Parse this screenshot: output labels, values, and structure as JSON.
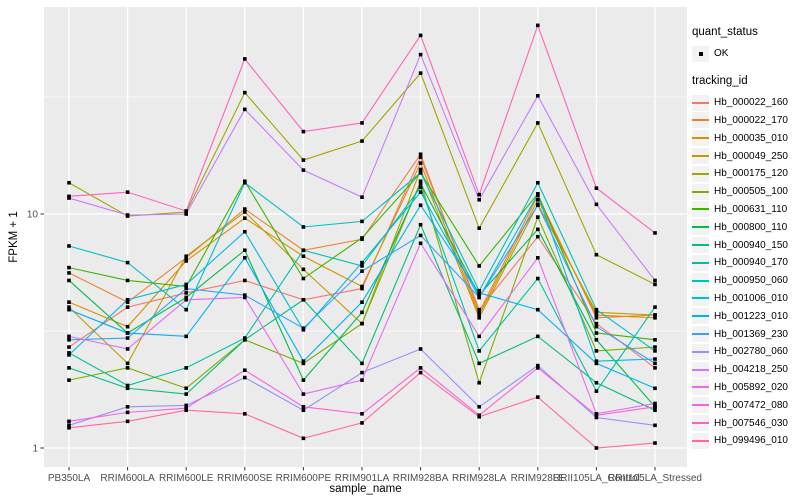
{
  "style": {
    "background": "#FFFFFF",
    "panel_bg": "#EBEBEB",
    "grid_color": "#FFFFFF",
    "tick_text_color": "#4D4D4D",
    "axis_title_color": "#000000",
    "point_color": "#000000",
    "legend_key_bg": "#F2F2F2"
  },
  "legend": {
    "quant_status_title": "quant_status",
    "quant_status_items": [
      "OK"
    ],
    "tracking_id_title": "tracking_id"
  },
  "chart_data": {
    "type": "line",
    "title": "",
    "xlabel": "sample_name",
    "ylabel": "FPKM + 1",
    "legend_position": "right",
    "grid": true,
    "point_marker": {
      "shape": "square",
      "color": "#000000",
      "meaning": "quant_status = OK"
    },
    "y_axis": {
      "scale": "log10",
      "ticks": [
        1,
        10
      ],
      "tick_labels": [
        "1",
        "10"
      ],
      "minor_ticks": [
        3.162,
        31.623
      ],
      "range": [
        0.84,
        77
      ]
    },
    "categories": [
      "PB350LA",
      "RRIM600LA",
      "RRIM600LE",
      "RRIM600SE",
      "RRIM600PE",
      "RRIM901LA",
      "RRIM928BA",
      "RRIM928LA",
      "RRIM928LE",
      "RRII105LA_Control",
      "RRII105LA_Stressed"
    ],
    "series": [
      {
        "name": "Hb_000022_160",
        "color": "#F8766D",
        "values": [
          2.7,
          4.0,
          4.6,
          5.2,
          4.3,
          4.8,
          17.5,
          3.9,
          8.0,
          3.4,
          2.2
        ]
      },
      {
        "name": "Hb_000022_170",
        "color": "#EA8331",
        "values": [
          5.6,
          4.2,
          6.5,
          10.5,
          7.0,
          7.8,
          18.0,
          3.8,
          12.0,
          3.6,
          3.7
        ]
      },
      {
        "name": "Hb_000035_010",
        "color": "#D89000",
        "values": [
          4.2,
          3.3,
          6.3,
          9.6,
          6.6,
          4.9,
          16.5,
          3.7,
          11.5,
          3.7,
          3.6
        ]
      },
      {
        "name": "Hb_000049_250",
        "color": "#C09B00",
        "values": [
          4.0,
          2.3,
          6.6,
          10.2,
          5.8,
          3.4,
          15.5,
          3.6,
          11.0,
          3.8,
          3.7
        ]
      },
      {
        "name": "Hb_000175_120",
        "color": "#A3A500",
        "values": [
          13.6,
          9.8,
          10.2,
          33.0,
          17.0,
          20.5,
          40.0,
          8.7,
          24.5,
          6.7,
          5.0
        ]
      },
      {
        "name": "Hb_000505_100",
        "color": "#7CAE00",
        "values": [
          1.95,
          2.2,
          1.8,
          2.9,
          2.3,
          3.4,
          13.8,
          1.9,
          9.7,
          2.6,
          2.7
        ]
      },
      {
        "name": "Hb_000631_110",
        "color": "#39B600",
        "values": [
          5.9,
          5.2,
          4.9,
          13.8,
          5.3,
          7.9,
          15.0,
          6.0,
          12.2,
          3.1,
          2.9
        ]
      },
      {
        "name": "Hb_000800_110",
        "color": "#00BB4E",
        "values": [
          5.2,
          3.1,
          4.4,
          7.0,
          1.95,
          3.8,
          13.5,
          4.5,
          8.6,
          2.9,
          1.5
        ]
      },
      {
        "name": "Hb_000940_150",
        "color": "#00BF7D",
        "values": [
          2.2,
          1.8,
          1.7,
          2.9,
          4.3,
          2.3,
          9.0,
          2.3,
          3.0,
          1.9,
          1.45
        ]
      },
      {
        "name": "Hb_000940_170",
        "color": "#00C1A3",
        "values": [
          2.55,
          1.85,
          2.2,
          2.95,
          7.0,
          6.0,
          13.0,
          2.6,
          5.3,
          1.75,
          4.0
        ]
      },
      {
        "name": "Hb_000950_060",
        "color": "#00BFC4",
        "values": [
          7.3,
          6.2,
          3.9,
          13.6,
          8.8,
          9.3,
          15.0,
          4.7,
          13.6,
          3.9,
          2.6
        ]
      },
      {
        "name": "Hb_001006_010",
        "color": "#00BAE0",
        "values": [
          2.5,
          4.3,
          5.0,
          8.4,
          3.2,
          6.2,
          12.4,
          4.4,
          12.1,
          2.35,
          2.4
        ]
      },
      {
        "name": "Hb_001223_010",
        "color": "#00B0F6",
        "values": [
          3.9,
          3.1,
          3.0,
          6.5,
          2.35,
          4.2,
          10.9,
          4.6,
          3.9,
          2.3,
          1.8
        ]
      },
      {
        "name": "Hb_001369_230",
        "color": "#35A2FF",
        "values": [
          2.9,
          2.95,
          4.8,
          4.5,
          3.25,
          5.7,
          8.1,
          4.4,
          10.9,
          3.3,
          2.3
        ]
      },
      {
        "name": "Hb_002780_060",
        "color": "#9590FF",
        "values": [
          1.25,
          1.5,
          1.52,
          2.0,
          1.45,
          2.1,
          2.65,
          1.5,
          2.25,
          1.35,
          1.25
        ]
      },
      {
        "name": "Hb_004218_250",
        "color": "#C77CFF",
        "values": [
          11.7,
          9.9,
          10.0,
          28.0,
          15.4,
          11.8,
          48.0,
          11.5,
          32.0,
          11.0,
          5.2
        ]
      },
      {
        "name": "Hb_005892_020",
        "color": "#E76BF3",
        "values": [
          3.0,
          2.65,
          4.3,
          4.4,
          1.7,
          1.95,
          7.5,
          3.0,
          6.5,
          1.4,
          1.55
        ]
      },
      {
        "name": "Hb_007472_080",
        "color": "#FA62DB",
        "values": [
          1.3,
          1.42,
          1.48,
          2.15,
          1.5,
          1.4,
          2.2,
          1.38,
          2.2,
          1.38,
          1.5
        ]
      },
      {
        "name": "Hb_007546_030",
        "color": "#FF62BC",
        "values": [
          11.9,
          12.4,
          10.3,
          46.0,
          22.5,
          24.5,
          58.0,
          12.1,
          64.0,
          12.9,
          8.3
        ]
      },
      {
        "name": "Hb_099496_010",
        "color": "#FF6A98",
        "values": [
          1.22,
          1.3,
          1.45,
          1.4,
          1.1,
          1.28,
          2.1,
          1.36,
          1.65,
          1.0,
          1.05
        ]
      }
    ]
  }
}
